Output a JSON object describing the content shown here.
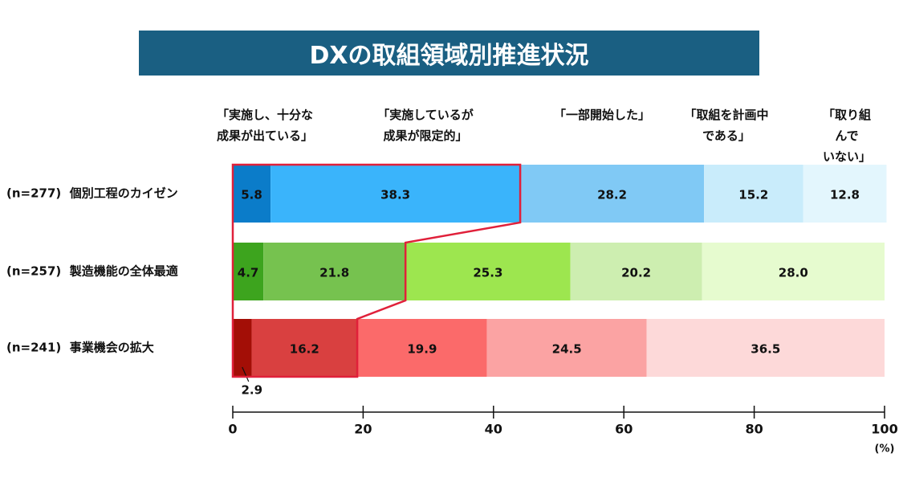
{
  "chart_data": {
    "type": "stacked-bar-horizontal",
    "title": "DXの取組領域別推進状況",
    "categories": [
      "(n=277)  個別工程のカイゼン",
      "(n=257)  製造機能の全体最適",
      "(n=241)  事業機会の拡大"
    ],
    "series": [
      {
        "name": "「実施し、十分な\n成果が出ている」",
        "colors": [
          "#0b7cc9",
          "#3da41e",
          "#a30e06"
        ],
        "values": [
          5.8,
          4.7,
          2.9
        ],
        "value_labels": [
          "5.8",
          "4.7",
          "2.9"
        ]
      },
      {
        "name": "「実施しているが\n成果が限定的」",
        "colors": [
          "#3ab4fb",
          "#76c24f",
          "#d94040"
        ],
        "values": [
          38.3,
          21.8,
          16.2
        ],
        "value_labels": [
          "38.3",
          "21.8",
          "16.2"
        ]
      },
      {
        "name": "「一部開始した」",
        "colors": [
          "#80c9f5",
          "#9de64f",
          "#fb6a6a"
        ],
        "values": [
          28.2,
          25.3,
          19.9
        ],
        "value_labels": [
          "28.2",
          "25.3",
          "19.9"
        ]
      },
      {
        "name": "「取組を計画中\nである」",
        "colors": [
          "#c9ecfb",
          "#cdeeb0",
          "#fba3a3"
        ],
        "values": [
          15.2,
          20.2,
          24.5
        ],
        "value_labels": [
          "15.2",
          "20.2",
          "24.5"
        ]
      },
      {
        "name": "「取り組んで\nいない」",
        "colors": [
          "#e3f6fd",
          "#e6fbcf",
          "#fdd9d9"
        ],
        "values": [
          12.8,
          28.0,
          36.5
        ],
        "value_labels": [
          "12.8",
          "28.0",
          "36.5"
        ]
      }
    ],
    "xlim": [
      0,
      100
    ],
    "xticks": [
      0,
      20,
      40,
      60,
      80,
      100
    ],
    "x_unit": "(%)",
    "highlight_color": "#e0203a"
  }
}
